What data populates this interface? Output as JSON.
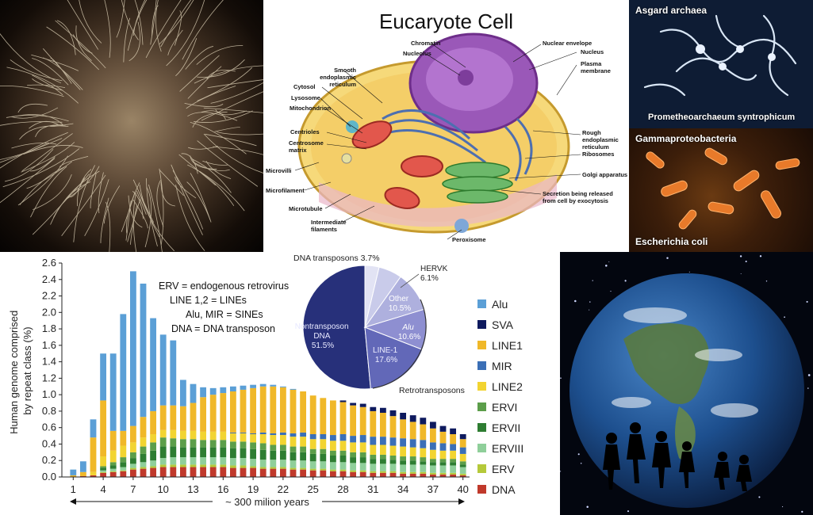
{
  "panels": {
    "cell": {
      "title": "Eucaryote Cell",
      "labels": {
        "chromatin": "Chromatin",
        "nucleolus": "Nucleolus",
        "nuclear_envelope": "Nuclear envelope",
        "nucleus": "Nucleus",
        "plasma_membrane": "Plasma membrane",
        "smooth_er": "Smooth endoplasmic reticulum",
        "cytosol": "Cytosol",
        "lysosome": "Lysosome",
        "mitochondrion": "Mitochondrion",
        "centrioles": "Centrioles",
        "centrosome_matrix": "Centrosome matrix",
        "microvilli": "Microvilli",
        "microfilament": "Microfilament",
        "microtubule": "Microtubule",
        "intermediate_filaments": "Intermediate filaments",
        "rough_er": "Rough endoplasmic reticulum",
        "ribosomes": "Ribosomes",
        "golgi": "Golgi apparatus",
        "secretion": "Secretion being released from cell by exocytosis",
        "peroxisome": "Peroxisome"
      }
    },
    "asgard": {
      "title": "Asgard archaea",
      "species": "Prometheoarchaeum syntrophicum"
    },
    "gamma": {
      "title": "Gammaproteobacteria",
      "species": "Escherichia coli"
    }
  },
  "chart_data": {
    "type": "bar",
    "stacked": true,
    "ylabel": "Human genome comprised by repeat class (%)",
    "xlabel": "~ 300 milion years",
    "ylim": [
      0,
      2.6
    ],
    "yticks": [
      "0.0",
      "0.2",
      "0.4",
      "0.6",
      "0.8",
      "1.0",
      "1.2",
      "1.4",
      "1.6",
      "1.8",
      "2.0",
      "2.2",
      "2.4",
      "2.6"
    ],
    "xticks": [
      1,
      4,
      7,
      10,
      13,
      16,
      19,
      22,
      25,
      28,
      31,
      34,
      37,
      40
    ],
    "x": [
      1,
      2,
      3,
      4,
      5,
      6,
      7,
      8,
      9,
      10,
      11,
      12,
      13,
      14,
      15,
      16,
      17,
      18,
      19,
      20,
      21,
      22,
      23,
      24,
      25,
      26,
      27,
      28,
      29,
      30,
      31,
      32,
      33,
      34,
      35,
      36,
      37,
      38,
      39,
      40
    ],
    "series": [
      {
        "name": "DNA",
        "color": "#c0392b",
        "values": [
          0,
          0.01,
          0.02,
          0.05,
          0.06,
          0.07,
          0.09,
          0.1,
          0.11,
          0.12,
          0.12,
          0.12,
          0.12,
          0.12,
          0.12,
          0.12,
          0.11,
          0.11,
          0.11,
          0.1,
          0.1,
          0.1,
          0.09,
          0.09,
          0.08,
          0.08,
          0.07,
          0.07,
          0.06,
          0.06,
          0.05,
          0.05,
          0.05,
          0.04,
          0.04,
          0.04,
          0.03,
          0.03,
          0.03,
          0.02
        ]
      },
      {
        "name": "ERV",
        "color": "#b5c93a",
        "values": [
          0,
          0,
          0,
          0.01,
          0.01,
          0.01,
          0.02,
          0.02,
          0.02,
          0.03,
          0.03,
          0.03,
          0.03,
          0.03,
          0.03,
          0.03,
          0.03,
          0.03,
          0.02,
          0.02,
          0.02,
          0.02,
          0.02,
          0.02,
          0.02,
          0.02,
          0.02,
          0.02,
          0.02,
          0.02,
          0.02,
          0.02,
          0.02,
          0.02,
          0.02,
          0.02,
          0.02,
          0.02,
          0.02,
          0.02
        ]
      },
      {
        "name": "ERVIII",
        "color": "#8fcf9a",
        "values": [
          0,
          0,
          0,
          0.02,
          0.03,
          0.04,
          0.05,
          0.06,
          0.07,
          0.08,
          0.09,
          0.09,
          0.09,
          0.09,
          0.09,
          0.09,
          0.09,
          0.09,
          0.09,
          0.09,
          0.09,
          0.09,
          0.09,
          0.09,
          0.09,
          0.09,
          0.09,
          0.09,
          0.09,
          0.09,
          0.09,
          0.09,
          0.09,
          0.09,
          0.09,
          0.09,
          0.09,
          0.09,
          0.09,
          0.08
        ]
      },
      {
        "name": "ERVII",
        "color": "#2e7d32",
        "values": [
          0,
          0,
          0,
          0.03,
          0.04,
          0.06,
          0.07,
          0.1,
          0.12,
          0.14,
          0.13,
          0.12,
          0.12,
          0.12,
          0.12,
          0.12,
          0.12,
          0.12,
          0.12,
          0.12,
          0.11,
          0.11,
          0.1,
          0.1,
          0.09,
          0.09,
          0.08,
          0.08,
          0.07,
          0.07,
          0.06,
          0.06,
          0.05,
          0.05,
          0.05,
          0.04,
          0.04,
          0.04,
          0.04,
          0.03
        ]
      },
      {
        "name": "ERVI",
        "color": "#5c9e4a",
        "values": [
          0,
          0,
          0,
          0.02,
          0.04,
          0.06,
          0.07,
          0.09,
          0.1,
          0.11,
          0.1,
          0.1,
          0.1,
          0.09,
          0.09,
          0.09,
          0.08,
          0.08,
          0.08,
          0.08,
          0.07,
          0.07,
          0.07,
          0.07,
          0.06,
          0.06,
          0.06,
          0.06,
          0.06,
          0.06,
          0.05,
          0.05,
          0.05,
          0.05,
          0.05,
          0.05,
          0.04,
          0.04,
          0.04,
          0.04
        ]
      },
      {
        "name": "LINE2",
        "color": "#f2d431",
        "values": [
          0,
          0,
          0.04,
          0.12,
          0.14,
          0.14,
          0.12,
          0.11,
          0.1,
          0.09,
          0.1,
          0.1,
          0.1,
          0.1,
          0.1,
          0.1,
          0.1,
          0.1,
          0.1,
          0.11,
          0.12,
          0.12,
          0.12,
          0.12,
          0.12,
          0.12,
          0.12,
          0.12,
          0.12,
          0.12,
          0.12,
          0.12,
          0.12,
          0.12,
          0.11,
          0.11,
          0.11,
          0.1,
          0.1,
          0.09
        ]
      },
      {
        "name": "MIR",
        "color": "#3b6fb6",
        "values": [
          0,
          0,
          0,
          0,
          0,
          0,
          0,
          0,
          0,
          0,
          0,
          0,
          0,
          0,
          0,
          0,
          0.01,
          0.01,
          0.01,
          0.02,
          0.02,
          0.03,
          0.04,
          0.05,
          0.06,
          0.06,
          0.07,
          0.08,
          0.08,
          0.09,
          0.1,
          0.1,
          0.1,
          0.1,
          0.1,
          0.1,
          0.09,
          0.09,
          0.08,
          0.08
        ]
      },
      {
        "name": "LINE1",
        "color": "#f0b829",
        "values": [
          0.02,
          0.05,
          0.42,
          0.68,
          0.24,
          0.18,
          0.2,
          0.25,
          0.28,
          0.3,
          0.3,
          0.3,
          0.34,
          0.42,
          0.45,
          0.47,
          0.5,
          0.52,
          0.55,
          0.56,
          0.57,
          0.55,
          0.53,
          0.5,
          0.47,
          0.44,
          0.42,
          0.39,
          0.37,
          0.34,
          0.31,
          0.29,
          0.26,
          0.23,
          0.21,
          0.19,
          0.17,
          0.14,
          0.12,
          0.1
        ]
      },
      {
        "name": "SVA",
        "color": "#0e1a5e",
        "values": [
          0,
          0,
          0,
          0,
          0,
          0,
          0,
          0,
          0,
          0,
          0,
          0,
          0,
          0,
          0,
          0,
          0,
          0,
          0,
          0,
          0,
          0,
          0,
          0,
          0,
          0,
          0,
          0.02,
          0.03,
          0.04,
          0.05,
          0.06,
          0.07,
          0.08,
          0.08,
          0.08,
          0.08,
          0.07,
          0.07,
          0.06
        ]
      },
      {
        "name": "Alu",
        "color": "#5b9fd6",
        "values": [
          0.07,
          0.13,
          0.22,
          0.57,
          0.94,
          1.42,
          1.88,
          1.62,
          1.13,
          0.86,
          0.79,
          0.32,
          0.23,
          0.12,
          0.08,
          0.07,
          0.06,
          0.05,
          0.04,
          0.03,
          0.02,
          0.01,
          0.01,
          0,
          0,
          0,
          0,
          0,
          0,
          0,
          0,
          0,
          0,
          0,
          0,
          0,
          0,
          0,
          0,
          0
        ]
      }
    ],
    "legend": [
      "Alu",
      "SVA",
      "LINE1",
      "MIR",
      "LINE2",
      "ERVI",
      "ERVII",
      "ERVIII",
      "ERV",
      "DNA"
    ],
    "legend_placement": "right",
    "annotations": [
      "ERV = endogenous retrovirus",
      "LINE 1,2 = LINEs",
      "Alu, MIR = SINEs",
      "DNA = DNA transposon"
    ],
    "inset_pie": {
      "slices": [
        {
          "label": "Nontransposon DNA",
          "value": 51.5,
          "color": "#27307a"
        },
        {
          "label": "LINE-1",
          "value": 17.6,
          "color": "#6268b8"
        },
        {
          "label": "Alu",
          "value": 10.6,
          "color": "#8e8fd1"
        },
        {
          "label": "Other",
          "value": 10.5,
          "color": "#aeb0de"
        },
        {
          "label": "HERVK",
          "value": 6.1,
          "color": "#c9cbea"
        },
        {
          "label": "DNA transposons",
          "value": 3.7,
          "color": "#e2e3f4"
        }
      ],
      "text": {
        "nontransposon": "Nontransposon DNA 51.5%",
        "nontransposon_l1": "Nontransposon",
        "nontransposon_l2": "DNA",
        "nontransposon_l3": "51.5%",
        "line1_l1": "LINE-1",
        "line1_l2": "17.6%",
        "alu_l1": "Alu",
        "alu_l2": "10.6%",
        "other_l1": "Other",
        "other_l2": "10.5%",
        "hervk_l1": "HERVK",
        "hervk_l2": "6.1%",
        "dna_transposons": "DNA transposons 3.7%",
        "retrotransposons": "Retrotransposons"
      }
    }
  },
  "colors": {
    "chart_bg": "#ffffff",
    "panel_border": "#000000"
  }
}
